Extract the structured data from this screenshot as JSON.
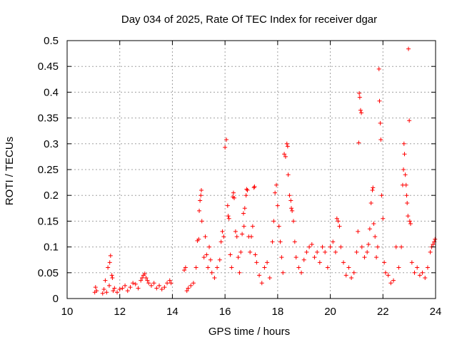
{
  "chart_data": {
    "type": "scatter",
    "title": "Day 034 of 2025, Rate Of TEC Index for receiver dgar",
    "xlabel": "GPS time / hours",
    "ylabel": "ROTI / TECUs",
    "xlim": [
      10,
      24
    ],
    "ylim": [
      0,
      0.5
    ],
    "x_ticks": [
      10,
      12,
      14,
      16,
      18,
      20,
      22,
      24
    ],
    "y_ticks": [
      0,
      0.05,
      0.1,
      0.15,
      0.2,
      0.25,
      0.3,
      0.35,
      0.4,
      0.45,
      0.5
    ],
    "x_tick_labels": [
      "10",
      "12",
      "14",
      "16",
      "18",
      "20",
      "22",
      "24"
    ],
    "y_tick_labels": [
      "0",
      "0.05",
      "0.1",
      "0.15",
      "0.2",
      "0.25",
      "0.3",
      "0.35",
      "0.4",
      "0.45",
      "0.5"
    ],
    "grid": true,
    "marker": "plus",
    "color": "#ff0000",
    "series": [
      {
        "points": [
          [
            11.05,
            0.012
          ],
          [
            11.08,
            0.022
          ],
          [
            11.12,
            0.015
          ],
          [
            11.35,
            0.01
          ],
          [
            11.4,
            0.018
          ],
          [
            11.45,
            0.035
          ],
          [
            11.5,
            0.012
          ],
          [
            11.55,
            0.06
          ],
          [
            11.6,
            0.025
          ],
          [
            11.62,
            0.07
          ],
          [
            11.65,
            0.083
          ],
          [
            11.7,
            0.045
          ],
          [
            11.72,
            0.04
          ],
          [
            11.75,
            0.015
          ],
          [
            11.8,
            0.02
          ],
          [
            11.9,
            0.012
          ],
          [
            12.0,
            0.018
          ],
          [
            12.1,
            0.02
          ],
          [
            12.2,
            0.025
          ],
          [
            12.3,
            0.015
          ],
          [
            12.4,
            0.022
          ],
          [
            12.5,
            0.03
          ],
          [
            12.6,
            0.028
          ],
          [
            12.7,
            0.02
          ],
          [
            12.8,
            0.035
          ],
          [
            12.85,
            0.04
          ],
          [
            12.9,
            0.045
          ],
          [
            12.95,
            0.048
          ],
          [
            13.0,
            0.04
          ],
          [
            13.05,
            0.035
          ],
          [
            13.1,
            0.03
          ],
          [
            13.2,
            0.025
          ],
          [
            13.3,
            0.03
          ],
          [
            13.4,
            0.02
          ],
          [
            13.5,
            0.025
          ],
          [
            13.6,
            0.018
          ],
          [
            13.7,
            0.022
          ],
          [
            13.8,
            0.03
          ],
          [
            13.9,
            0.035
          ],
          [
            13.95,
            0.03
          ],
          [
            14.45,
            0.055
          ],
          [
            14.5,
            0.06
          ],
          [
            14.55,
            0.015
          ],
          [
            14.6,
            0.02
          ],
          [
            14.7,
            0.025
          ],
          [
            14.8,
            0.03
          ],
          [
            14.9,
            0.06
          ],
          [
            14.95,
            0.112
          ],
          [
            15.0,
            0.115
          ],
          [
            15.02,
            0.17
          ],
          [
            15.05,
            0.19
          ],
          [
            15.08,
            0.2
          ],
          [
            15.1,
            0.21
          ],
          [
            15.12,
            0.15
          ],
          [
            15.2,
            0.08
          ],
          [
            15.25,
            0.12
          ],
          [
            15.3,
            0.085
          ],
          [
            15.35,
            0.06
          ],
          [
            15.4,
            0.1
          ],
          [
            15.45,
            0.075
          ],
          [
            15.5,
            0.05
          ],
          [
            15.6,
            0.04
          ],
          [
            15.7,
            0.06
          ],
          [
            15.8,
            0.075
          ],
          [
            15.85,
            0.11
          ],
          [
            15.9,
            0.13
          ],
          [
            15.95,
            0.12
          ],
          [
            16.0,
            0.293
          ],
          [
            16.05,
            0.308
          ],
          [
            16.1,
            0.18
          ],
          [
            16.12,
            0.16
          ],
          [
            16.15,
            0.155
          ],
          [
            16.2,
            0.085
          ],
          [
            16.25,
            0.06
          ],
          [
            16.3,
            0.197
          ],
          [
            16.32,
            0.205
          ],
          [
            16.35,
            0.195
          ],
          [
            16.4,
            0.13
          ],
          [
            16.45,
            0.12
          ],
          [
            16.5,
            0.08
          ],
          [
            16.55,
            0.05
          ],
          [
            16.6,
            0.09
          ],
          [
            16.65,
            0.125
          ],
          [
            16.7,
            0.165
          ],
          [
            16.72,
            0.14
          ],
          [
            16.75,
            0.175
          ],
          [
            16.8,
            0.2
          ],
          [
            16.82,
            0.212
          ],
          [
            16.85,
            0.21
          ],
          [
            16.9,
            0.12
          ],
          [
            16.95,
            0.09
          ],
          [
            17.0,
            0.12
          ],
          [
            17.05,
            0.14
          ],
          [
            17.1,
            0.215
          ],
          [
            17.12,
            0.217
          ],
          [
            17.15,
            0.085
          ],
          [
            17.2,
            0.07
          ],
          [
            17.3,
            0.045
          ],
          [
            17.4,
            0.03
          ],
          [
            17.5,
            0.06
          ],
          [
            17.6,
            0.07
          ],
          [
            17.7,
            0.04
          ],
          [
            17.8,
            0.11
          ],
          [
            17.85,
            0.15
          ],
          [
            17.9,
            0.205
          ],
          [
            17.95,
            0.22
          ],
          [
            18.0,
            0.18
          ],
          [
            18.05,
            0.14
          ],
          [
            18.1,
            0.11
          ],
          [
            18.15,
            0.08
          ],
          [
            18.2,
            0.05
          ],
          [
            18.25,
            0.28
          ],
          [
            18.3,
            0.275
          ],
          [
            18.35,
            0.3
          ],
          [
            18.38,
            0.295
          ],
          [
            18.4,
            0.24
          ],
          [
            18.45,
            0.2
          ],
          [
            18.5,
            0.19
          ],
          [
            18.52,
            0.175
          ],
          [
            18.55,
            0.17
          ],
          [
            18.6,
            0.15
          ],
          [
            18.65,
            0.11
          ],
          [
            18.7,
            0.08
          ],
          [
            18.8,
            0.06
          ],
          [
            18.9,
            0.05
          ],
          [
            19.0,
            0.075
          ],
          [
            19.1,
            0.09
          ],
          [
            19.2,
            0.1
          ],
          [
            19.3,
            0.105
          ],
          [
            19.4,
            0.08
          ],
          [
            19.5,
            0.09
          ],
          [
            19.6,
            0.07
          ],
          [
            19.7,
            0.1
          ],
          [
            19.8,
            0.09
          ],
          [
            19.9,
            0.06
          ],
          [
            20.0,
            0.1
          ],
          [
            20.1,
            0.11
          ],
          [
            20.2,
            0.09
          ],
          [
            20.25,
            0.155
          ],
          [
            20.3,
            0.15
          ],
          [
            20.35,
            0.14
          ],
          [
            20.4,
            0.1
          ],
          [
            20.5,
            0.07
          ],
          [
            20.6,
            0.045
          ],
          [
            20.7,
            0.06
          ],
          [
            20.8,
            0.04
          ],
          [
            20.9,
            0.05
          ],
          [
            21.0,
            0.09
          ],
          [
            21.05,
            0.13
          ],
          [
            21.08,
            0.302
          ],
          [
            21.1,
            0.398
          ],
          [
            21.12,
            0.39
          ],
          [
            21.15,
            0.365
          ],
          [
            21.18,
            0.36
          ],
          [
            21.2,
            0.1
          ],
          [
            21.3,
            0.08
          ],
          [
            21.4,
            0.09
          ],
          [
            21.45,
            0.105
          ],
          [
            21.5,
            0.135
          ],
          [
            21.55,
            0.185
          ],
          [
            21.6,
            0.21
          ],
          [
            21.62,
            0.215
          ],
          [
            21.65,
            0.145
          ],
          [
            21.7,
            0.12
          ],
          [
            21.75,
            0.08
          ],
          [
            21.8,
            0.1
          ],
          [
            21.85,
            0.445
          ],
          [
            21.87,
            0.383
          ],
          [
            21.9,
            0.34
          ],
          [
            21.92,
            0.308
          ],
          [
            21.95,
            0.2
          ],
          [
            22.0,
            0.155
          ],
          [
            22.05,
            0.07
          ],
          [
            22.1,
            0.05
          ],
          [
            22.2,
            0.045
          ],
          [
            22.3,
            0.03
          ],
          [
            22.4,
            0.035
          ],
          [
            22.5,
            0.1
          ],
          [
            22.6,
            0.06
          ],
          [
            22.7,
            0.1
          ],
          [
            22.75,
            0.22
          ],
          [
            22.78,
            0.25
          ],
          [
            22.8,
            0.3
          ],
          [
            22.82,
            0.28
          ],
          [
            22.85,
            0.24
          ],
          [
            22.88,
            0.22
          ],
          [
            22.9,
            0.2
          ],
          [
            22.92,
            0.185
          ],
          [
            22.95,
            0.16
          ],
          [
            22.97,
            0.484
          ],
          [
            23.0,
            0.345
          ],
          [
            23.02,
            0.15
          ],
          [
            23.05,
            0.145
          ],
          [
            23.1,
            0.07
          ],
          [
            23.2,
            0.05
          ],
          [
            23.3,
            0.06
          ],
          [
            23.4,
            0.045
          ],
          [
            23.5,
            0.05
          ],
          [
            23.6,
            0.04
          ],
          [
            23.7,
            0.06
          ],
          [
            23.8,
            0.09
          ],
          [
            23.85,
            0.1
          ],
          [
            23.9,
            0.105
          ],
          [
            23.95,
            0.11
          ],
          [
            23.98,
            0.115
          ]
        ]
      }
    ]
  }
}
